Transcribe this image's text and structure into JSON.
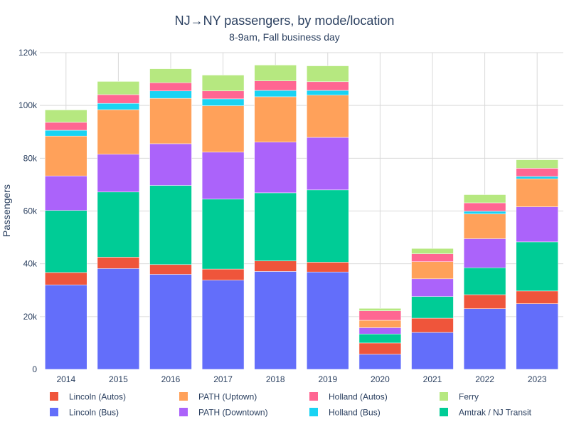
{
  "chart_data": {
    "type": "bar",
    "stacked": true,
    "title": "NJ→NY passengers, by mode/location",
    "subtitle": "8-9am, Fall business day",
    "xlabel": "",
    "ylabel": "Passengers",
    "ylim": [
      0,
      120000
    ],
    "yticks": [
      0,
      20000,
      40000,
      60000,
      80000,
      100000,
      120000
    ],
    "ytick_labels": [
      "0",
      "20k",
      "40k",
      "60k",
      "80k",
      "100k",
      "120k"
    ],
    "grid": true,
    "legend_position": "bottom",
    "categories": [
      "2014",
      "2015",
      "2016",
      "2017",
      "2018",
      "2019",
      "2020",
      "2021",
      "2022",
      "2023"
    ],
    "series": [
      {
        "name": "Lincoln (Bus)",
        "color": "#636efa",
        "values": [
          32000,
          38200,
          36000,
          33800,
          37100,
          36900,
          5700,
          14000,
          23000,
          24900
        ]
      },
      {
        "name": "Lincoln (Autos)",
        "color": "#ef553b",
        "values": [
          4700,
          4300,
          3700,
          4200,
          4000,
          3700,
          4300,
          5400,
          5300,
          4800
        ]
      },
      {
        "name": "Amtrak / NJ Transit",
        "color": "#00cc96",
        "values": [
          23500,
          24700,
          30000,
          26500,
          25800,
          27400,
          3400,
          8200,
          10200,
          18600
        ]
      },
      {
        "name": "PATH (Downtown)",
        "color": "#ab63fa",
        "values": [
          13100,
          14300,
          15800,
          17800,
          19200,
          19900,
          2400,
          6700,
          11000,
          13300
        ]
      },
      {
        "name": "PATH (Uptown)",
        "color": "#ffa15a",
        "values": [
          15100,
          16900,
          17200,
          17600,
          17200,
          16000,
          2800,
          6500,
          9400,
          10600
        ]
      },
      {
        "name": "Holland (Bus)",
        "color": "#19d3f3",
        "values": [
          2200,
          2400,
          2800,
          2600,
          2400,
          1800,
          0,
          0,
          1000,
          900
        ]
      },
      {
        "name": "Holland (Autos)",
        "color": "#ff6692",
        "values": [
          3000,
          3300,
          3100,
          3000,
          3600,
          3300,
          3600,
          3000,
          3200,
          3100
        ]
      },
      {
        "name": "Ferry",
        "color": "#b6e880",
        "values": [
          4700,
          5000,
          5300,
          6000,
          6000,
          6000,
          900,
          2000,
          3100,
          3200
        ]
      }
    ],
    "legend": [
      {
        "name": "Lincoln (Autos)",
        "color": "#ef553b"
      },
      {
        "name": "PATH (Uptown)",
        "color": "#ffa15a"
      },
      {
        "name": "Holland (Autos)",
        "color": "#ff6692"
      },
      {
        "name": "Ferry",
        "color": "#b6e880"
      },
      {
        "name": "Lincoln (Bus)",
        "color": "#636efa"
      },
      {
        "name": "PATH (Downtown)",
        "color": "#ab63fa"
      },
      {
        "name": "Holland (Bus)",
        "color": "#19d3f3"
      },
      {
        "name": "Amtrak / NJ Transit",
        "color": "#00cc96"
      }
    ]
  }
}
